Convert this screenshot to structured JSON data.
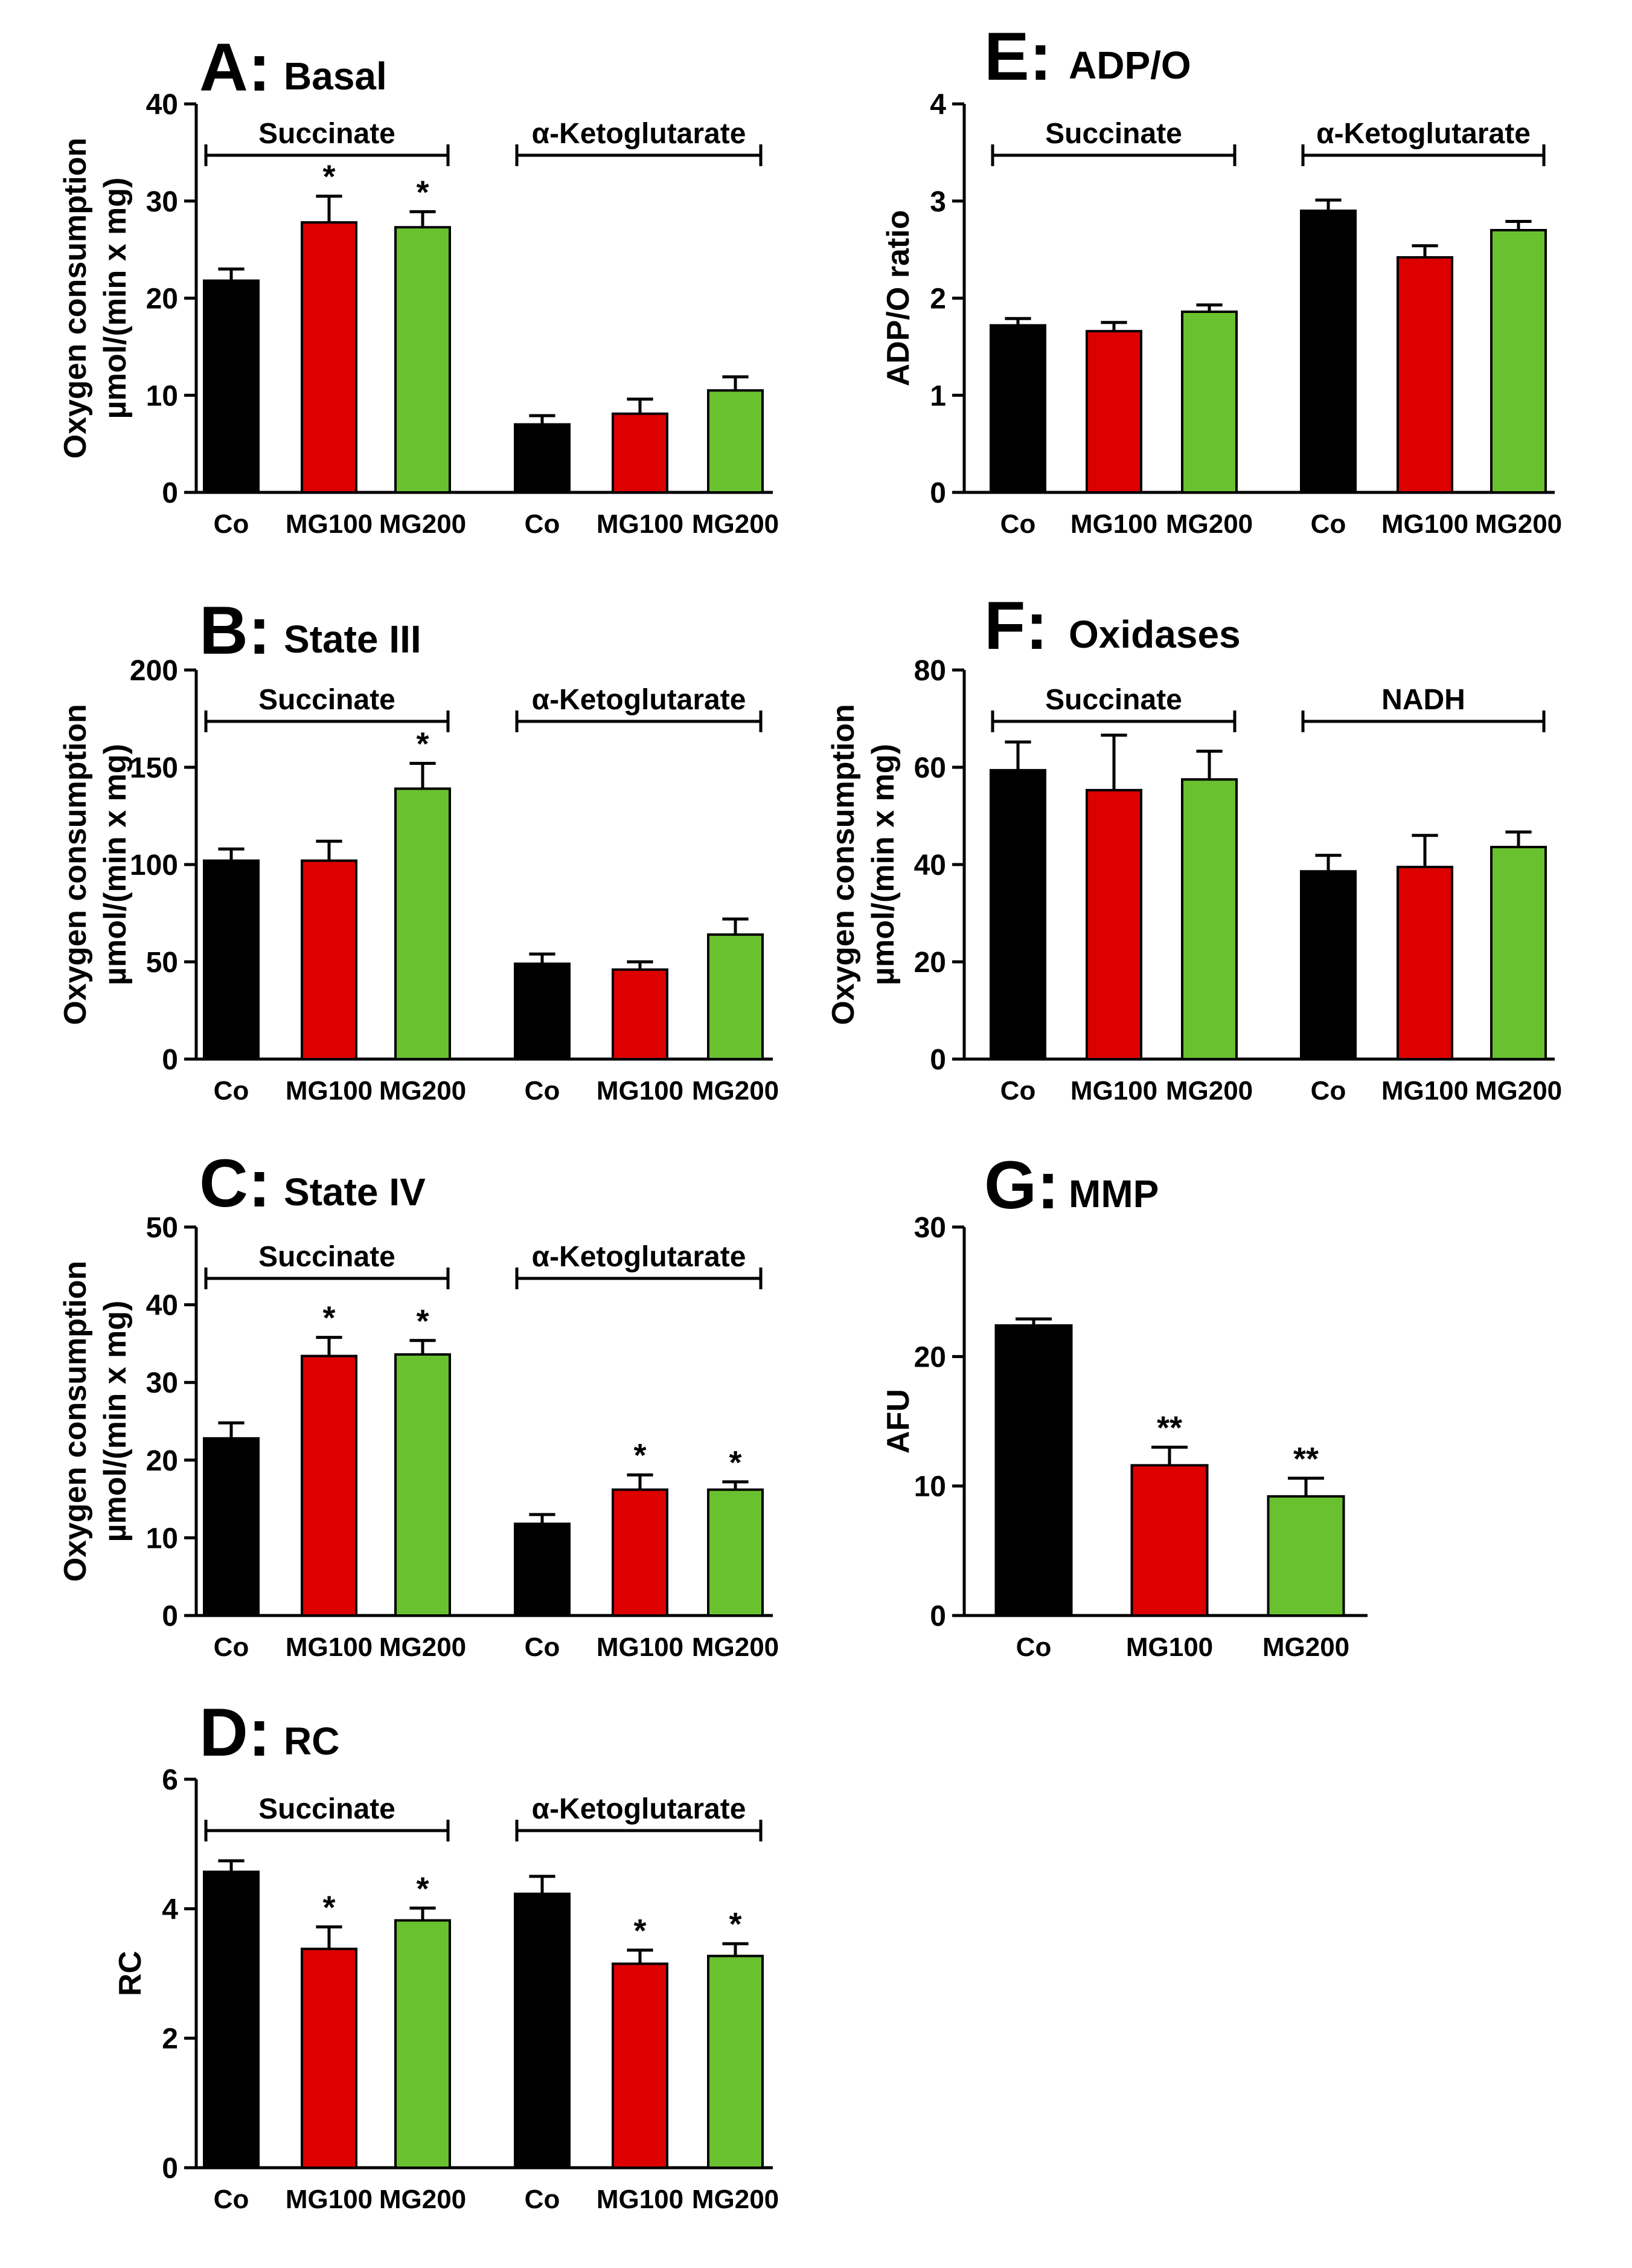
{
  "colors": {
    "Co": "#000000",
    "MG100": "#dd0000",
    "MG200": "#6ac12f"
  },
  "chart_data": [
    {
      "id": "A",
      "letter": "A:",
      "name": "Basal",
      "type": "bar",
      "ylabel": [
        "Oxygen consumption",
        "µmol/(min x mg)"
      ],
      "ylim": [
        0,
        40
      ],
      "ticks": [
        0,
        10,
        20,
        30,
        40
      ],
      "groups": [
        {
          "label": "Succinate",
          "categories": [
            "Co",
            "MG100",
            "MG200"
          ],
          "values": [
            21.8,
            27.8,
            27.3
          ],
          "errors": [
            1.2,
            2.7,
            1.6
          ],
          "sig": [
            "",
            "*",
            "*"
          ]
        },
        {
          "label": "α-Ketoglutarate",
          "categories": [
            "Co",
            "MG100",
            "MG200"
          ],
          "values": [
            7.0,
            8.1,
            10.5
          ],
          "errors": [
            0.9,
            1.5,
            1.4
          ],
          "sig": [
            "",
            "",
            ""
          ]
        }
      ]
    },
    {
      "id": "B",
      "letter": "B:",
      "name": "State III",
      "type": "bar",
      "ylabel": [
        "Oxygen consumption",
        "µmol/(min x mg)"
      ],
      "ylim": [
        0,
        200
      ],
      "ticks": [
        0,
        50,
        100,
        150,
        200
      ],
      "groups": [
        {
          "label": "Succinate",
          "categories": [
            "Co",
            "MG100",
            "MG200"
          ],
          "values": [
            102,
            102,
            139
          ],
          "errors": [
            6,
            10,
            13
          ],
          "sig": [
            "",
            "",
            "*"
          ]
        },
        {
          "label": "α-Ketoglutarate",
          "categories": [
            "Co",
            "MG100",
            "MG200"
          ],
          "values": [
            49,
            46,
            64
          ],
          "errors": [
            5,
            4,
            8
          ],
          "sig": [
            "",
            "",
            ""
          ]
        }
      ]
    },
    {
      "id": "C",
      "letter": "C:",
      "name": "State IV",
      "type": "bar",
      "ylabel": [
        "Oxygen consumption",
        "µmol/(min x mg)"
      ],
      "ylim": [
        0,
        50
      ],
      "ticks": [
        0,
        10,
        20,
        30,
        40,
        50
      ],
      "groups": [
        {
          "label": "Succinate",
          "categories": [
            "Co",
            "MG100",
            "MG200"
          ],
          "values": [
            22.8,
            33.4,
            33.6
          ],
          "errors": [
            2.0,
            2.4,
            1.8
          ],
          "sig": [
            "",
            "*",
            "*"
          ]
        },
        {
          "label": "α-Ketoglutarate",
          "categories": [
            "Co",
            "MG100",
            "MG200"
          ],
          "values": [
            11.8,
            16.2,
            16.2
          ],
          "errors": [
            1.2,
            1.9,
            1.0
          ],
          "sig": [
            "",
            "*",
            "*"
          ]
        }
      ]
    },
    {
      "id": "D",
      "letter": "D:",
      "name": "RC",
      "type": "bar",
      "ylabel": [
        "RC"
      ],
      "ylim": [
        0,
        6
      ],
      "ticks": [
        0,
        2,
        4,
        6
      ],
      "groups": [
        {
          "label": "Succinate",
          "categories": [
            "Co",
            "MG100",
            "MG200"
          ],
          "values": [
            4.57,
            3.38,
            3.82
          ],
          "errors": [
            0.17,
            0.34,
            0.19
          ],
          "sig": [
            "",
            "*",
            "*"
          ]
        },
        {
          "label": "α-Ketoglutarate",
          "categories": [
            "Co",
            "MG100",
            "MG200"
          ],
          "values": [
            4.23,
            3.15,
            3.27
          ],
          "errors": [
            0.27,
            0.21,
            0.19
          ],
          "sig": [
            "",
            "*",
            "*"
          ]
        }
      ]
    },
    {
      "id": "E",
      "letter": "E:",
      "name": "ADP/O",
      "type": "bar",
      "ylabel": [
        "ADP/O ratio"
      ],
      "ylim": [
        0,
        4
      ],
      "ticks": [
        0,
        1,
        2,
        3,
        4
      ],
      "groups": [
        {
          "label": "Succinate",
          "categories": [
            "Co",
            "MG100",
            "MG200"
          ],
          "values": [
            1.72,
            1.66,
            1.86
          ],
          "errors": [
            0.07,
            0.09,
            0.07
          ],
          "sig": [
            "",
            "",
            ""
          ]
        },
        {
          "label": "α-Ketoglutarate",
          "categories": [
            "Co",
            "MG100",
            "MG200"
          ],
          "values": [
            2.9,
            2.42,
            2.7
          ],
          "errors": [
            0.11,
            0.12,
            0.09
          ],
          "sig": [
            "",
            "",
            ""
          ]
        }
      ]
    },
    {
      "id": "F",
      "letter": "F:",
      "name": "Oxidases",
      "type": "bar",
      "ylabel": [
        "Oxygen consumption",
        "µmol/(min x mg)"
      ],
      "ylim": [
        0,
        80
      ],
      "ticks": [
        0,
        20,
        40,
        60,
        80
      ],
      "groups": [
        {
          "label": "Succinate",
          "categories": [
            "Co",
            "MG100",
            "MG200"
          ],
          "values": [
            59.4,
            55.3,
            57.5
          ],
          "errors": [
            5.8,
            11.3,
            5.8
          ],
          "sig": [
            "",
            "",
            ""
          ]
        },
        {
          "label": "NADH",
          "categories": [
            "Co",
            "MG100",
            "MG200"
          ],
          "values": [
            38.6,
            39.5,
            43.6
          ],
          "errors": [
            3.3,
            6.5,
            3.1
          ],
          "sig": [
            "",
            "",
            ""
          ]
        }
      ]
    },
    {
      "id": "G",
      "letter": "G:",
      "name": "MMP",
      "type": "bar",
      "ylabel": [
        "AFU"
      ],
      "ylim": [
        0,
        30
      ],
      "ticks": [
        0,
        10,
        20,
        30
      ],
      "groups": [
        {
          "label": "",
          "categories": [
            "Co",
            "MG100",
            "MG200"
          ],
          "values": [
            22.4,
            11.6,
            9.2
          ],
          "errors": [
            0.5,
            1.4,
            1.4
          ],
          "sig": [
            "",
            "**",
            "**"
          ]
        }
      ]
    }
  ]
}
